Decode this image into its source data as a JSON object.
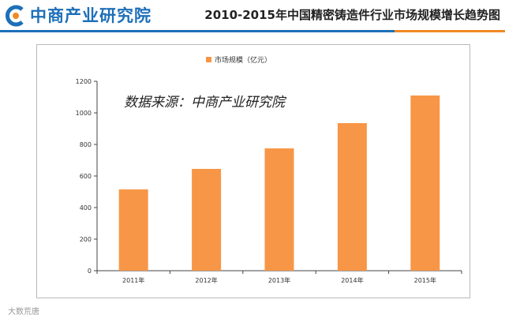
{
  "header": {
    "brand": "中商产业研究院",
    "title": "2010-2015年中国精密铸造件行业市场规模增长趋势图"
  },
  "watermark": "数据来源：中商产业研究院",
  "footer": "大数荒唐",
  "colors": {
    "bar": "#f79646",
    "brand": "#1d6fb8",
    "accent": "#f08a24"
  },
  "chart_data": {
    "type": "bar",
    "title": "",
    "legend": {
      "label": "市场规模（亿元）",
      "placement": "top-center"
    },
    "categories": [
      "2011年",
      "2012年",
      "2013年",
      "2014年",
      "2015年"
    ],
    "values": [
      515,
      645,
      775,
      935,
      1110
    ],
    "ylim": [
      0,
      1200
    ],
    "yticks": [
      0,
      200,
      400,
      600,
      800,
      1000,
      1200
    ],
    "xlabel": "",
    "ylabel": "",
    "grid": false
  }
}
